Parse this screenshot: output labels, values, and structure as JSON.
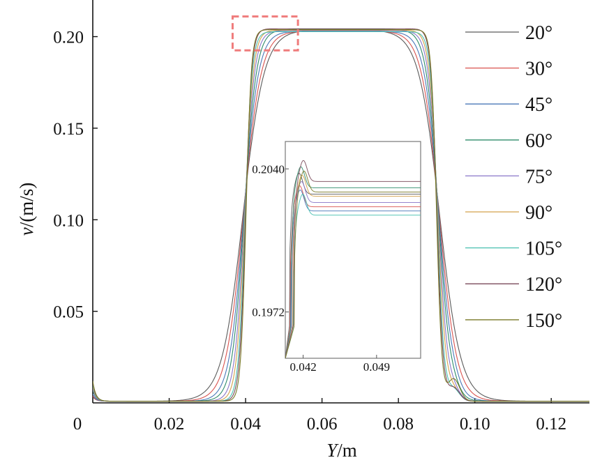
{
  "chart_data": {
    "type": "line",
    "title": "",
    "xlabel_var": "Y",
    "xlabel_unit": "/m",
    "ylabel_var": "v",
    "ylabel_unit": "/(m/s)",
    "xlim": [
      0,
      0.13
    ],
    "ylim": [
      0,
      0.22
    ],
    "x_ticks": [
      "0",
      "0.02",
      "0.04",
      "0.06",
      "0.08",
      "0.10",
      "0.12"
    ],
    "y_ticks": [
      "0.05",
      "0.10",
      "0.15",
      "0.20"
    ],
    "legend_position": "right",
    "series": [
      {
        "name": "20°",
        "color": "#5a5a5a",
        "plateau": 0.2028,
        "rise_x": 0.0393,
        "rise_w": 0.00275,
        "fall_x": 0.0908,
        "fall_w": 0.00275,
        "tail": 0.0,
        "edge": 0.0025
      },
      {
        "name": "30°",
        "color": "#d9534f",
        "plateau": 0.2022,
        "rise_x": 0.0394,
        "rise_w": 0.0023,
        "fall_x": 0.0907,
        "fall_w": 0.0023,
        "tail": 0.0,
        "edge": 0.003
      },
      {
        "name": "45°",
        "color": "#4a78b8",
        "plateau": 0.202,
        "rise_x": 0.0395,
        "rise_w": 0.0019,
        "fall_x": 0.0906,
        "fall_w": 0.0019,
        "tail": 0.002,
        "edge": 0.004
      },
      {
        "name": "60°",
        "color": "#2e8b6a",
        "plateau": 0.2031,
        "rise_x": 0.0396,
        "rise_w": 0.0016,
        "fall_x": 0.0905,
        "fall_w": 0.0016,
        "tail": 0.003,
        "edge": 0.006
      },
      {
        "name": "75°",
        "color": "#8a77c9",
        "plateau": 0.2024,
        "rise_x": 0.0397,
        "rise_w": 0.0013,
        "fall_x": 0.0904,
        "fall_w": 0.0013,
        "tail": 0.004,
        "edge": 0.007
      },
      {
        "name": "90°",
        "color": "#d4a24c",
        "plateau": 0.2027,
        "rise_x": 0.0398,
        "rise_w": 0.0011,
        "fall_x": 0.0903,
        "fall_w": 0.0011,
        "tail": 0.005,
        "edge": 0.008
      },
      {
        "name": "105°",
        "color": "#48c0b0",
        "plateau": 0.2018,
        "rise_x": 0.0399,
        "rise_w": 0.0009,
        "fall_x": 0.0902,
        "fall_w": 0.0009,
        "tail": 0.006,
        "edge": 0.009
      },
      {
        "name": "120°",
        "color": "#7a4a5a",
        "plateau": 0.2034,
        "rise_x": 0.04,
        "rise_w": 0.0008,
        "fall_x": 0.0901,
        "fall_w": 0.0008,
        "tail": 0.007,
        "edge": 0.01
      },
      {
        "name": "150°",
        "color": "#7a7a28",
        "plateau": 0.2029,
        "rise_x": 0.0401,
        "rise_w": 0.0007,
        "fall_x": 0.09,
        "fall_w": 0.0007,
        "tail": 0.012,
        "edge": 0.011
      }
    ],
    "inset": {
      "xlim": [
        0.0403,
        0.0532
      ],
      "ylim": [
        0.195,
        0.2053
      ],
      "x_ticks": [
        "0.042",
        "0.049"
      ],
      "y_ticks": [
        "0.2040",
        "0.1972"
      ],
      "zoom_region": {
        "x": [
          0.0366,
          0.0537
        ],
        "y": [
          0.1925,
          0.211
        ]
      }
    }
  }
}
